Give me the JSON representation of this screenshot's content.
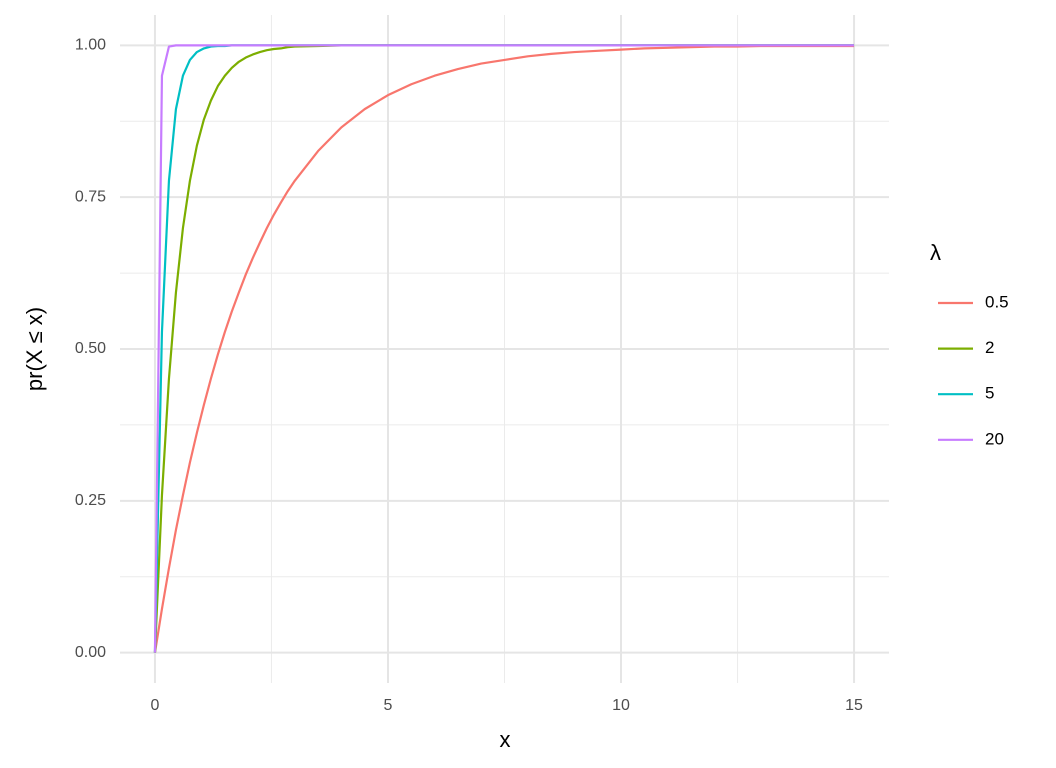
{
  "chart_data": {
    "type": "line",
    "x_label": "x",
    "y_label": "pr(X ≤ x)",
    "legend_title": "λ",
    "legend_position": "right",
    "grid": true,
    "x": [
      0,
      0.15,
      0.3,
      0.45,
      0.6,
      0.75,
      0.9,
      1.05,
      1.2,
      1.35,
      1.5,
      1.65,
      1.8,
      1.95,
      2.1,
      2.25,
      2.4,
      2.55,
      2.7,
      2.85,
      3,
      3.5,
      4,
      4.5,
      5,
      5.5,
      6,
      6.5,
      7,
      7.5,
      8,
      8.5,
      9,
      9.5,
      10,
      10.5,
      11,
      11.5,
      12,
      12.5,
      13,
      13.5,
      14,
      14.5,
      15
    ],
    "series": [
      {
        "name": "0.5",
        "color": "#F8766D",
        "values": [
          0,
          0.072,
          0.139,
          0.202,
          0.259,
          0.313,
          0.362,
          0.408,
          0.451,
          0.491,
          0.528,
          0.562,
          0.593,
          0.623,
          0.65,
          0.675,
          0.699,
          0.721,
          0.741,
          0.76,
          0.777,
          0.826,
          0.865,
          0.895,
          0.918,
          0.936,
          0.95,
          0.961,
          0.97,
          0.976,
          0.982,
          0.986,
          0.989,
          0.991,
          0.993,
          0.995,
          0.996,
          0.997,
          0.998,
          0.998,
          0.999,
          0.999,
          0.999,
          0.999,
          0.999
        ]
      },
      {
        "name": "2",
        "color": "#7CAE00",
        "values": [
          0,
          0.259,
          0.451,
          0.593,
          0.699,
          0.777,
          0.835,
          0.878,
          0.909,
          0.933,
          0.95,
          0.963,
          0.973,
          0.98,
          0.985,
          0.989,
          0.992,
          0.994,
          0.995,
          0.997,
          0.998,
          0.999,
          1,
          1,
          1,
          1,
          1,
          1,
          1,
          1,
          1,
          1,
          1,
          1,
          1,
          1,
          1,
          1,
          1,
          1,
          1,
          1,
          1,
          1,
          1
        ]
      },
      {
        "name": "5",
        "color": "#00BFC4",
        "values": [
          0,
          0.528,
          0.777,
          0.895,
          0.95,
          0.976,
          0.989,
          0.995,
          0.998,
          0.999,
          0.999,
          1,
          1,
          1,
          1,
          1,
          1,
          1,
          1,
          1,
          1,
          1,
          1,
          1,
          1,
          1,
          1,
          1,
          1,
          1,
          1,
          1,
          1,
          1,
          1,
          1,
          1,
          1,
          1,
          1,
          1,
          1,
          1,
          1,
          1
        ]
      },
      {
        "name": "20",
        "color": "#C77CFF",
        "values": [
          0,
          0.95,
          0.998,
          1,
          1,
          1,
          1,
          1,
          1,
          1,
          1,
          1,
          1,
          1,
          1,
          1,
          1,
          1,
          1,
          1,
          1,
          1,
          1,
          1,
          1,
          1,
          1,
          1,
          1,
          1,
          1,
          1,
          1,
          1,
          1,
          1,
          1,
          1,
          1,
          1,
          1,
          1,
          1,
          1,
          1
        ]
      }
    ],
    "xlim": [
      -0.75,
      15.75
    ],
    "xticks": [
      0,
      5,
      10,
      15
    ],
    "xminor": [
      2.5,
      7.5,
      12.5
    ],
    "ylim": [
      -0.05,
      1.05
    ],
    "yticks": [
      {
        "value": 0,
        "label": "0.00"
      },
      {
        "value": 0.25,
        "label": "0.25"
      },
      {
        "value": 0.5,
        "label": "0.50"
      },
      {
        "value": 0.75,
        "label": "0.75"
      },
      {
        "value": 1,
        "label": "1.00"
      }
    ],
    "yminor": [
      0.125,
      0.375,
      0.625,
      0.875
    ]
  }
}
